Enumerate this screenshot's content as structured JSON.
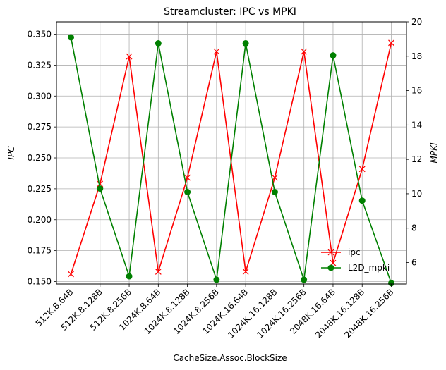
{
  "chart_data": {
    "type": "line",
    "title": "Streamcluster: IPC vs MPKI",
    "xlabel": "CacheSize.Assoc.BlockSize",
    "ylabel_left": "IPC",
    "ylabel_right": "MPKI",
    "categories": [
      "512K.8.64B",
      "512K.8.128B",
      "512K.8.256B",
      "1024K.8.64B",
      "1024K.8.128B",
      "1024K.8.256B",
      "1024K.16.64B",
      "1024K.16.128B",
      "1024K.16.256B",
      "2048K.16.64B",
      "2048K.16.128B",
      "2048K.16.256B"
    ],
    "ylim_left": [
      0.148,
      0.36
    ],
    "ylim_right": [
      4.75,
      20
    ],
    "yticks_left": [
      "0.150",
      "0.175",
      "0.200",
      "0.225",
      "0.250",
      "0.275",
      "0.300",
      "0.325",
      "0.350"
    ],
    "yticks_right": [
      "6",
      "8",
      "10",
      "12",
      "14",
      "16",
      "18",
      "20"
    ],
    "grid": true,
    "legend_position": "lower right",
    "series": [
      {
        "name": "ipc",
        "axis": "left",
        "color": "#ff0000",
        "marker": "x",
        "values": [
          0.156,
          0.229,
          0.332,
          0.158,
          0.234,
          0.336,
          0.158,
          0.234,
          0.336,
          0.165,
          0.241,
          0.343
        ]
      },
      {
        "name": "L2D_mpki",
        "axis": "right",
        "color": "#008000",
        "marker": "o",
        "values": [
          19.1,
          10.3,
          5.2,
          18.75,
          10.1,
          5.0,
          18.75,
          10.1,
          5.0,
          18.05,
          9.6,
          4.8
        ]
      }
    ]
  }
}
